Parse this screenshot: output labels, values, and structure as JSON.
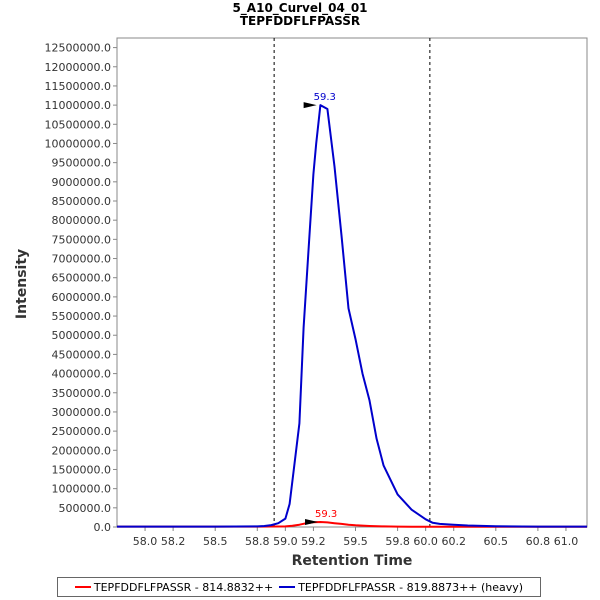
{
  "chart_data": {
    "type": "line",
    "title": "5_A10_Curvel_04_01",
    "subtitle": "TEPFDDFLFPASSR",
    "xlabel": "Retention Time",
    "ylabel": "Intensity",
    "xlim": [
      57.8,
      61.15
    ],
    "ylim": [
      0,
      12750000
    ],
    "x_ticks": [
      "58.0",
      "58.2",
      "58.5",
      "58.8",
      "59.0",
      "59.2",
      "59.5",
      "59.8",
      "60.0",
      "60.2",
      "60.5",
      "60.8",
      "61.0"
    ],
    "x_tick_values": [
      58.0,
      58.2,
      58.5,
      58.8,
      59.0,
      59.2,
      59.5,
      59.8,
      60.0,
      60.2,
      60.5,
      60.8,
      61.0
    ],
    "y_ticks": [
      "0.0",
      "500000.0",
      "1000000.0",
      "1500000.0",
      "2000000.0",
      "2500000.0",
      "3000000.0",
      "3500000.0",
      "4000000.0",
      "4500000.0",
      "5000000.0",
      "5500000.0",
      "6000000.0",
      "6500000.0",
      "7000000.0",
      "7500000.0",
      "8000000.0",
      "8500000.0",
      "9000000.0",
      "9500000.0",
      "10000000.0",
      "10500000.0",
      "11000000.0",
      "11500000.0",
      "12000000.0",
      "12500000.0"
    ],
    "y_tick_values": [
      0,
      500000,
      1000000,
      1500000,
      2000000,
      2500000,
      3000000,
      3500000,
      4000000,
      4500000,
      5000000,
      5500000,
      6000000,
      6500000,
      7000000,
      7500000,
      8000000,
      8500000,
      9000000,
      9500000,
      10000000,
      10500000,
      11000000,
      11500000,
      12000000,
      12500000
    ],
    "vlines": [
      58.92,
      60.03
    ],
    "legend_position": "bottom",
    "grid": false,
    "series": [
      {
        "name": "TEPFDDFLFPASSR - 814.8832++",
        "color": "#ff0000",
        "x": [
          57.8,
          58.0,
          58.2,
          58.4,
          58.6,
          58.8,
          58.9,
          59.0,
          59.05,
          59.1,
          59.15,
          59.2,
          59.25,
          59.3,
          59.35,
          59.4,
          59.45,
          59.5,
          59.6,
          59.7,
          59.8,
          59.9,
          60.0,
          60.2,
          60.5,
          60.8,
          61.15
        ],
        "y": [
          10000,
          10000,
          10000,
          10000,
          10000,
          10000,
          12000,
          15000,
          30000,
          60000,
          100000,
          125000,
          130000,
          120000,
          100000,
          80000,
          60000,
          45000,
          25000,
          15000,
          10000,
          8000,
          8000,
          8000,
          8000,
          8000,
          8000
        ],
        "peak": {
          "x": 59.24,
          "y": 130000,
          "label": "59.3"
        }
      },
      {
        "name": "TEPFDDFLFPASSR - 819.8873++ (heavy)",
        "color": "#0000cc",
        "x": [
          57.8,
          58.0,
          58.2,
          58.5,
          58.8,
          58.85,
          58.9,
          58.95,
          59.0,
          59.03,
          59.06,
          59.1,
          59.13,
          59.17,
          59.2,
          59.22,
          59.25,
          59.3,
          59.35,
          59.4,
          59.45,
          59.5,
          59.55,
          59.6,
          59.65,
          59.7,
          59.8,
          59.9,
          60.0,
          60.05,
          60.1,
          60.2,
          60.3,
          60.5,
          60.8,
          61.15
        ],
        "y": [
          10000,
          10000,
          10000,
          10000,
          15000,
          25000,
          50000,
          100000,
          220000,
          600000,
          1500000,
          2700000,
          5200000,
          7500000,
          9200000,
          10000000,
          11000000,
          10900000,
          9400000,
          7600000,
          5700000,
          4900000,
          4000000,
          3300000,
          2300000,
          1600000,
          850000,
          450000,
          200000,
          110000,
          80000,
          60000,
          40000,
          20000,
          10000,
          10000
        ],
        "peak": {
          "x": 59.23,
          "y": 11000000,
          "label": "59.3"
        }
      }
    ]
  }
}
